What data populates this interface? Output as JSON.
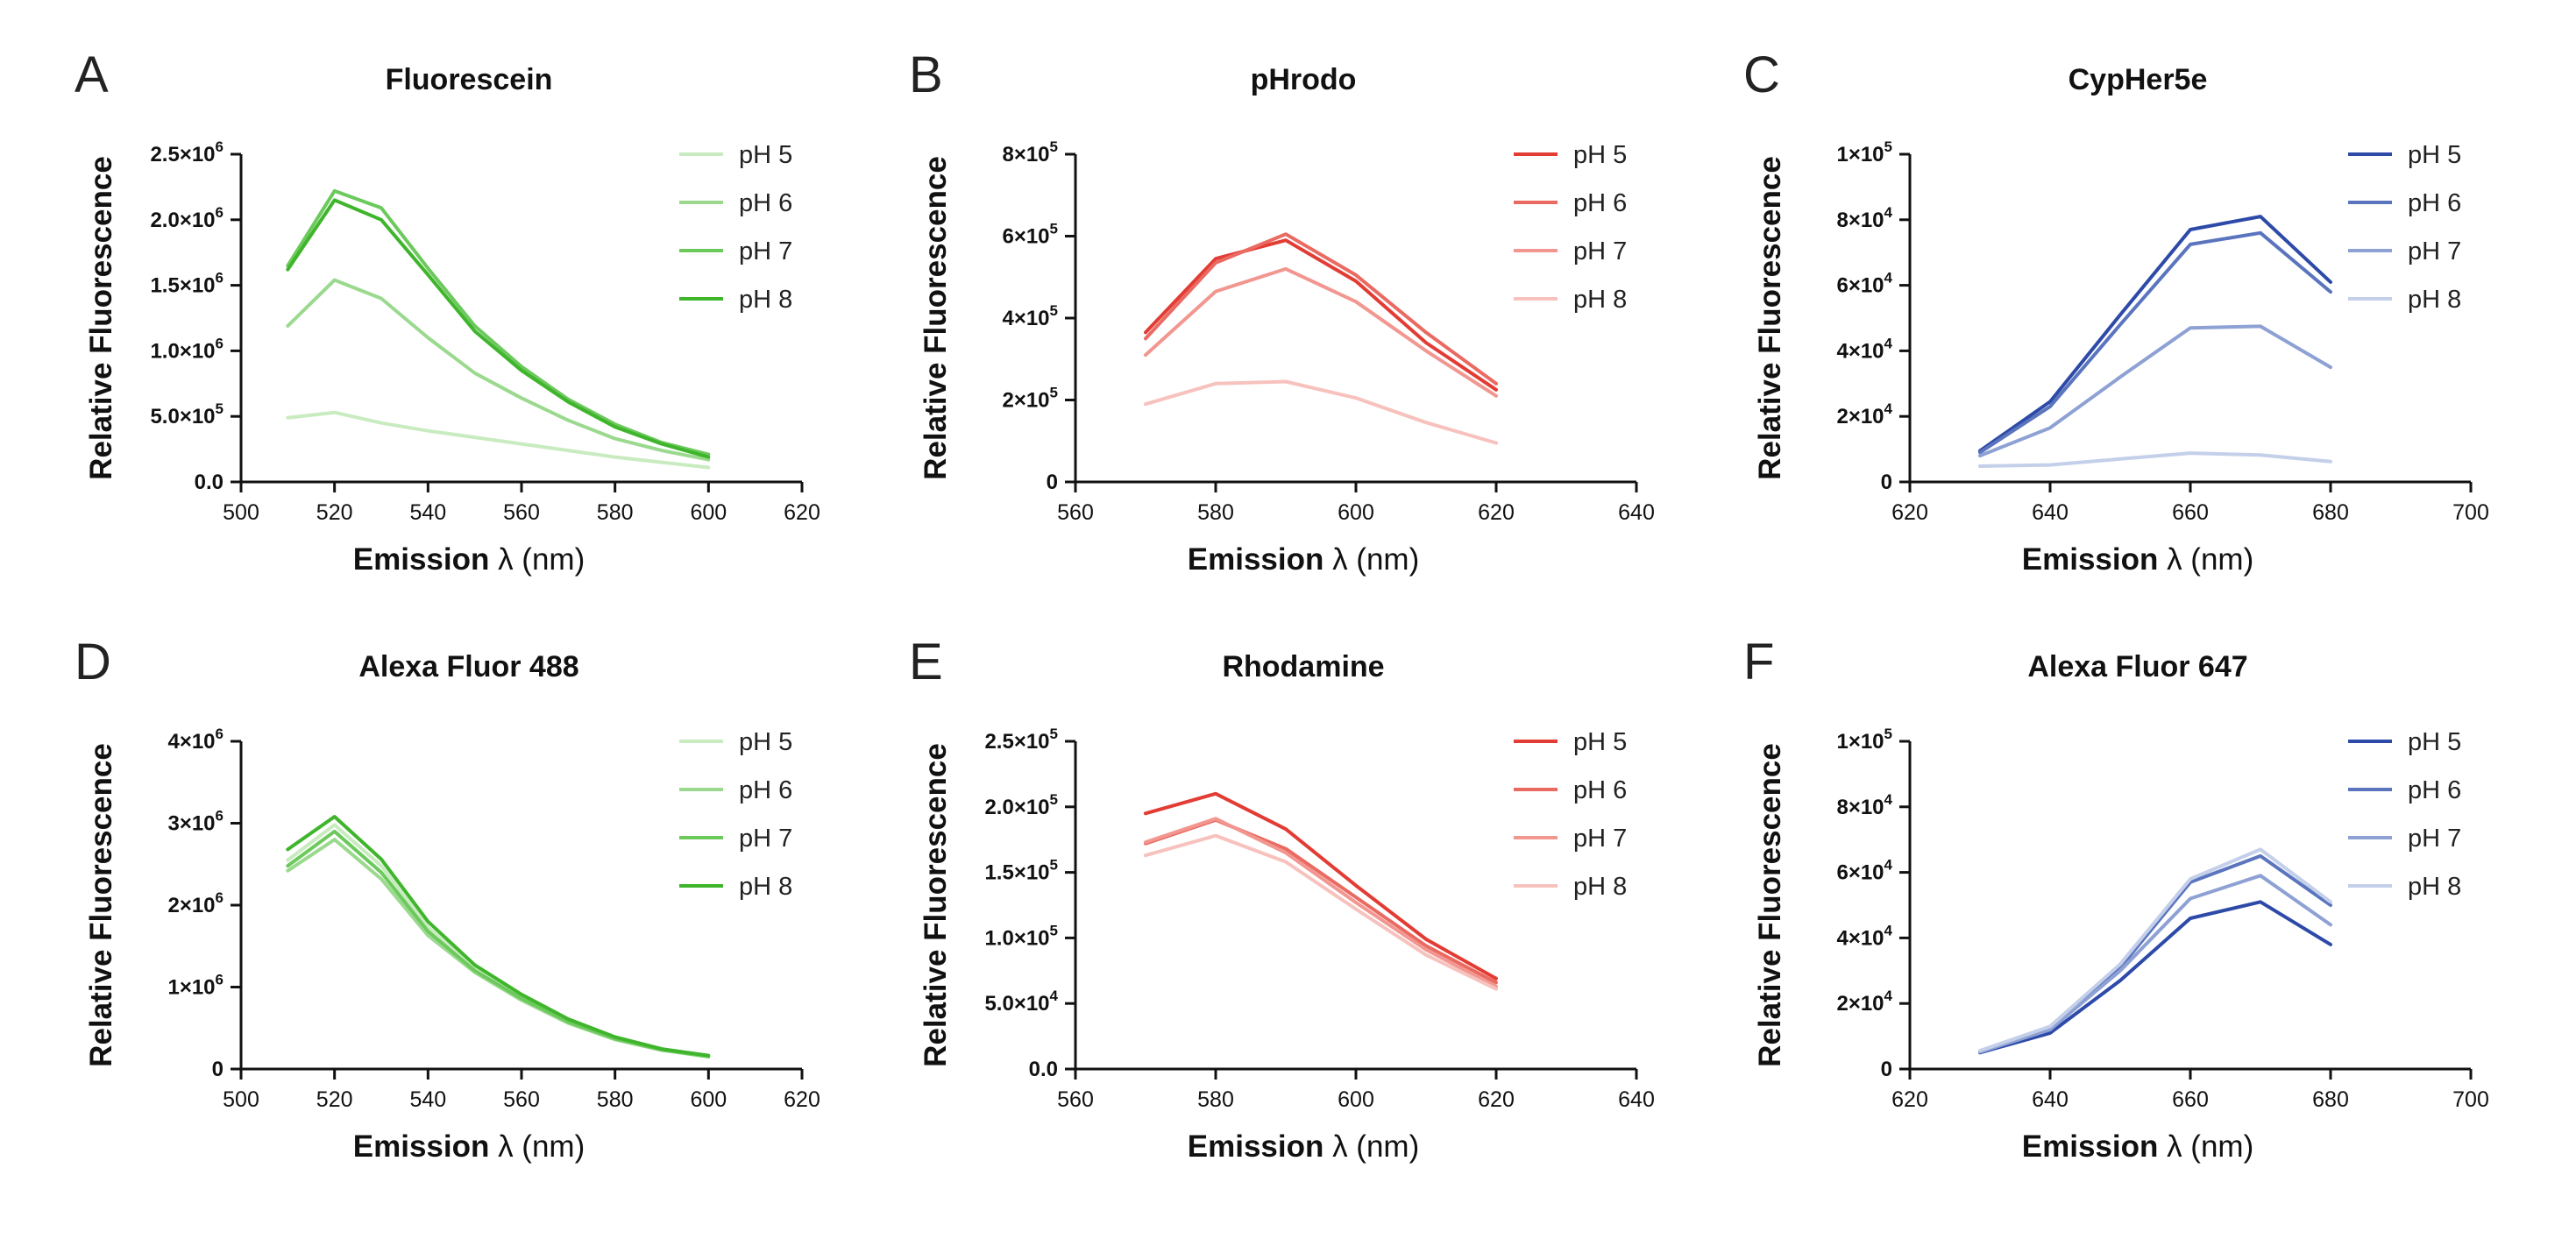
{
  "chart_data": [
    {
      "panel": "A",
      "title": "Fluorescein",
      "type": "line",
      "xlabel": "Emission",
      "xunit": "(nm)",
      "ylabel": "Relative Fluorescence",
      "xlim": [
        500,
        620
      ],
      "xticks": [
        "500",
        "520",
        "540",
        "560",
        "580",
        "600",
        "620"
      ],
      "ylim": [
        0,
        2500000
      ],
      "yticks": [
        {
          "v": 0,
          "m": "0.0",
          "e": ""
        },
        {
          "v": 500000,
          "m": "5.0×10",
          "e": "5"
        },
        {
          "v": 1000000,
          "m": "1.0×10",
          "e": "6"
        },
        {
          "v": 1500000,
          "m": "1.5×10",
          "e": "6"
        },
        {
          "v": 2000000,
          "m": "2.0×10",
          "e": "6"
        },
        {
          "v": 2500000,
          "m": "2.5×10",
          "e": "6"
        }
      ],
      "legend": "top-right",
      "x": [
        510,
        520,
        530,
        540,
        550,
        560,
        570,
        580,
        590,
        600
      ],
      "series": [
        {
          "name": "pH 5",
          "color": "#c9ebc0",
          "values": [
            490000,
            530000,
            450000,
            390000,
            340000,
            290000,
            240000,
            190000,
            150000,
            110000
          ]
        },
        {
          "name": "pH 6",
          "color": "#9ad98e",
          "values": [
            1190000,
            1540000,
            1400000,
            1100000,
            830000,
            640000,
            470000,
            330000,
            240000,
            170000
          ]
        },
        {
          "name": "pH 7",
          "color": "#6cc95c",
          "values": [
            1650000,
            2220000,
            2090000,
            1630000,
            1190000,
            880000,
            630000,
            440000,
            300000,
            210000
          ]
        },
        {
          "name": "pH 8",
          "color": "#3fb52c",
          "values": [
            1620000,
            2150000,
            2000000,
            1580000,
            1150000,
            850000,
            610000,
            420000,
            290000,
            190000
          ]
        }
      ]
    },
    {
      "panel": "B",
      "title": "pHrodo",
      "type": "line",
      "xlabel": "Emission",
      "xunit": "(nm)",
      "ylabel": "Relative Fluorescence",
      "xlim": [
        560,
        640
      ],
      "xticks": [
        "560",
        "580",
        "600",
        "620",
        "640"
      ],
      "ylim": [
        0,
        800000
      ],
      "yticks": [
        {
          "v": 0,
          "m": "0",
          "e": ""
        },
        {
          "v": 200000,
          "m": "2×10",
          "e": "5"
        },
        {
          "v": 400000,
          "m": "4×10",
          "e": "5"
        },
        {
          "v": 600000,
          "m": "6×10",
          "e": "5"
        },
        {
          "v": 800000,
          "m": "8×10",
          "e": "5"
        }
      ],
      "legend": "top-right",
      "x": [
        570,
        580,
        590,
        600,
        610,
        620
      ],
      "series": [
        {
          "name": "pH 5",
          "color": "#e23c34",
          "values": [
            365000,
            545000,
            590000,
            490000,
            340000,
            225000
          ]
        },
        {
          "name": "pH 6",
          "color": "#ea6a62",
          "values": [
            350000,
            535000,
            605000,
            505000,
            365000,
            240000
          ]
        },
        {
          "name": "pH 7",
          "color": "#f29690",
          "values": [
            310000,
            465000,
            520000,
            440000,
            320000,
            210000
          ]
        },
        {
          "name": "pH 8",
          "color": "#f7c2bd",
          "values": [
            190000,
            240000,
            245000,
            205000,
            145000,
            95000
          ]
        }
      ]
    },
    {
      "panel": "C",
      "title": "CypHer5e",
      "type": "line",
      "xlabel": "Emission",
      "xunit": "(nm)",
      "ylabel": "Relative Fluorescence",
      "xlim": [
        620,
        700
      ],
      "xticks": [
        "620",
        "640",
        "660",
        "680",
        "700"
      ],
      "ylim": [
        0,
        100000
      ],
      "yticks": [
        {
          "v": 0,
          "m": "0",
          "e": ""
        },
        {
          "v": 20000,
          "m": "2×10",
          "e": "4"
        },
        {
          "v": 40000,
          "m": "4×10",
          "e": "4"
        },
        {
          "v": 60000,
          "m": "6×10",
          "e": "4"
        },
        {
          "v": 80000,
          "m": "8×10",
          "e": "4"
        },
        {
          "v": 100000,
          "m": "1×10",
          "e": "5"
        }
      ],
      "legend": "top-right",
      "x": [
        630,
        640,
        650,
        660,
        670,
        680
      ],
      "series": [
        {
          "name": "pH 5",
          "color": "#2d4aa8",
          "values": [
            9500,
            24500,
            51000,
            77000,
            81000,
            61000
          ]
        },
        {
          "name": "pH 6",
          "color": "#5a74be",
          "values": [
            9000,
            23000,
            48000,
            72500,
            76000,
            58000
          ]
        },
        {
          "name": "pH 7",
          "color": "#8ea1d4",
          "values": [
            8000,
            16500,
            32000,
            47000,
            47500,
            35000
          ]
        },
        {
          "name": "pH 8",
          "color": "#c4cfea",
          "values": [
            4800,
            5200,
            7000,
            8800,
            8200,
            6200
          ]
        }
      ]
    },
    {
      "panel": "D",
      "title": "Alexa Fluor 488",
      "type": "line",
      "xlabel": "Emission",
      "xunit": "(nm)",
      "ylabel": "Relative Fluorescence",
      "xlim": [
        500,
        620
      ],
      "xticks": [
        "500",
        "520",
        "540",
        "560",
        "580",
        "600",
        "620"
      ],
      "ylim": [
        0,
        4000000
      ],
      "yticks": [
        {
          "v": 0,
          "m": "0",
          "e": ""
        },
        {
          "v": 1000000,
          "m": "1×10",
          "e": "6"
        },
        {
          "v": 2000000,
          "m": "2×10",
          "e": "6"
        },
        {
          "v": 3000000,
          "m": "3×10",
          "e": "6"
        },
        {
          "v": 4000000,
          "m": "4×10",
          "e": "6"
        }
      ],
      "legend": "top-right",
      "x": [
        510,
        520,
        530,
        540,
        550,
        560,
        570,
        580,
        590,
        600
      ],
      "series": [
        {
          "name": "pH 5",
          "color": "#c9ebc0",
          "values": [
            2550000,
            2980000,
            2480000,
            1730000,
            1230000,
            880000,
            590000,
            380000,
            240000,
            160000
          ]
        },
        {
          "name": "pH 6",
          "color": "#9ad98e",
          "values": [
            2420000,
            2800000,
            2320000,
            1630000,
            1180000,
            840000,
            560000,
            360000,
            230000,
            150000
          ]
        },
        {
          "name": "pH 7",
          "color": "#6cc95c",
          "values": [
            2480000,
            2900000,
            2400000,
            1680000,
            1200000,
            860000,
            575000,
            370000,
            235000,
            155000
          ]
        },
        {
          "name": "pH 8",
          "color": "#3fb52c",
          "values": [
            2680000,
            3080000,
            2560000,
            1800000,
            1270000,
            910000,
            610000,
            390000,
            245000,
            165000
          ]
        }
      ]
    },
    {
      "panel": "E",
      "title": "Rhodamine",
      "type": "line",
      "xlabel": "Emission",
      "xunit": "(nm)",
      "ylabel": "Relative Fluorescence",
      "xlim": [
        560,
        640
      ],
      "xticks": [
        "560",
        "580",
        "600",
        "620",
        "640"
      ],
      "ylim": [
        0,
        250000
      ],
      "yticks": [
        {
          "v": 0,
          "m": "0.0",
          "e": ""
        },
        {
          "v": 50000,
          "m": "5.0×10",
          "e": "4"
        },
        {
          "v": 100000,
          "m": "1.0×10",
          "e": "5"
        },
        {
          "v": 150000,
          "m": "1.5×10",
          "e": "5"
        },
        {
          "v": 200000,
          "m": "2.0×10",
          "e": "5"
        },
        {
          "v": 250000,
          "m": "2.5×10",
          "e": "5"
        }
      ],
      "legend": "top-right",
      "x": [
        570,
        580,
        590,
        600,
        610,
        620
      ],
      "series": [
        {
          "name": "pH 5",
          "color": "#e23c34",
          "values": [
            195000,
            210000,
            183000,
            140000,
            99000,
            69000
          ]
        },
        {
          "name": "pH 6",
          "color": "#ea6a62",
          "values": [
            172000,
            190000,
            168000,
            131000,
            94000,
            66000
          ]
        },
        {
          "name": "pH 7",
          "color": "#f29690",
          "values": [
            173000,
            191000,
            165000,
            127000,
            91000,
            63000
          ]
        },
        {
          "name": "pH 8",
          "color": "#f7c2bd",
          "values": [
            163000,
            178000,
            158000,
            122000,
            87000,
            61000
          ]
        }
      ]
    },
    {
      "panel": "F",
      "title": "Alexa Fluor 647",
      "type": "line",
      "xlabel": "Emission",
      "xunit": "(nm)",
      "ylabel": "Relative Fluorescence",
      "xlim": [
        620,
        700
      ],
      "xticks": [
        "620",
        "640",
        "660",
        "680",
        "700"
      ],
      "ylim": [
        0,
        100000
      ],
      "yticks": [
        {
          "v": 0,
          "m": "0",
          "e": ""
        },
        {
          "v": 20000,
          "m": "2×10",
          "e": "4"
        },
        {
          "v": 40000,
          "m": "4×10",
          "e": "4"
        },
        {
          "v": 60000,
          "m": "6×10",
          "e": "4"
        },
        {
          "v": 80000,
          "m": "8×10",
          "e": "4"
        },
        {
          "v": 100000,
          "m": "1×10",
          "e": "5"
        }
      ],
      "legend": "top-right",
      "x": [
        630,
        640,
        650,
        660,
        670,
        680
      ],
      "series": [
        {
          "name": "pH 5",
          "color": "#2d4aa8",
          "values": [
            5000,
            11000,
            27000,
            46000,
            51000,
            38000
          ]
        },
        {
          "name": "pH 6",
          "color": "#5a74be",
          "values": [
            5500,
            12500,
            31000,
            57000,
            65000,
            50000
          ]
        },
        {
          "name": "pH 7",
          "color": "#8ea1d4",
          "values": [
            5200,
            12000,
            30000,
            52000,
            59000,
            44000
          ]
        },
        {
          "name": "pH 8",
          "color": "#c4cfea",
          "values": [
            5600,
            13000,
            32000,
            58000,
            67000,
            51000
          ]
        }
      ]
    }
  ]
}
